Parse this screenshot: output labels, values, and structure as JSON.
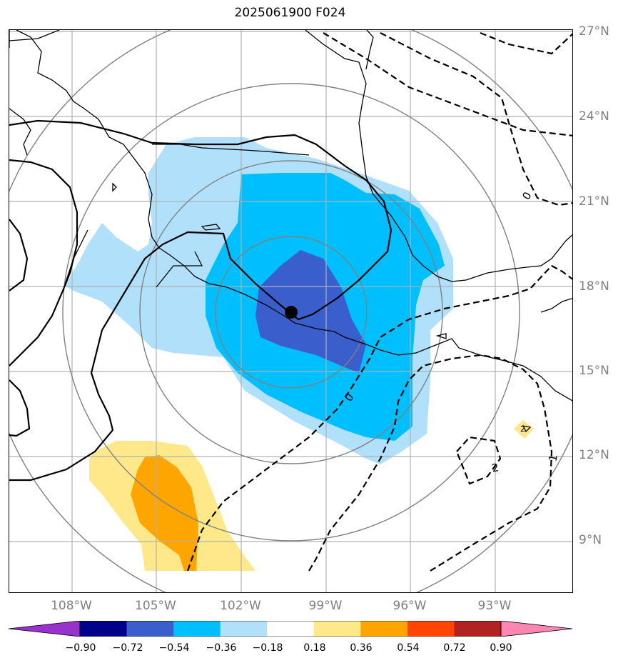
{
  "title": "2025061900 F024",
  "lat_labels": [
    "27°N",
    "24°N",
    "21°N",
    "18°N",
    "15°N",
    "12°N",
    "9°N"
  ],
  "lon_labels": [
    "108°W",
    "105°W",
    "102°W",
    "99°W",
    "96°W",
    "93°W"
  ],
  "contour_labels": [
    "0",
    "0",
    "2",
    "1",
    "2"
  ],
  "colorbar": {
    "ticks": [
      "−0.90",
      "−0.72",
      "−0.54",
      "−0.36",
      "−0.18",
      "0.18",
      "0.36",
      "0.54",
      "0.72",
      "0.90"
    ],
    "colors": [
      "#9932cc",
      "#00008b",
      "#3a5fcd",
      "#00bfff",
      "#b0e0fa",
      "#ffffff",
      "#ffe88a",
      "#ffa500",
      "#ff4500",
      "#b22222",
      "#ff85b3"
    ]
  },
  "colors": {
    "light_blue": "#b0e0fa",
    "blue": "#00bfff",
    "dark_blue": "#3a5fcd",
    "light_yellow": "#ffe88a",
    "orange": "#ffa500",
    "grid": "#b0b0b0",
    "rings": "#808080"
  },
  "map_data": {
    "extent_lon": [
      -110.5,
      -90.3
    ],
    "extent_lat": [
      7.2,
      27.1
    ],
    "center_marker": {
      "lon": -100.1,
      "lat": 17.1
    }
  }
}
